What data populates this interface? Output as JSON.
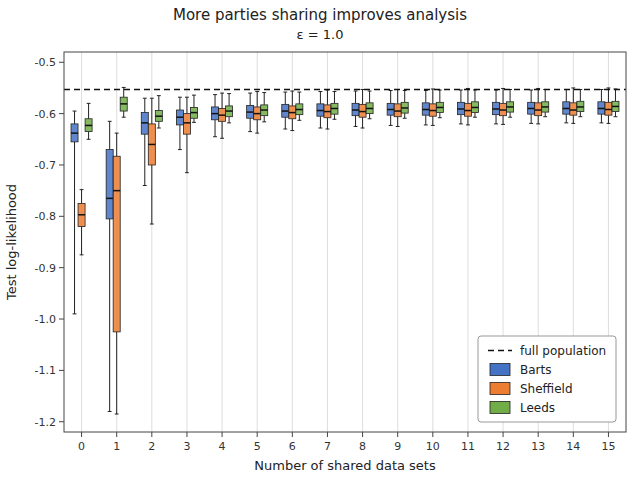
{
  "chart_data": {
    "type": "box",
    "title": "More parties sharing improves analysis",
    "subtitle": "ε = 1.0",
    "x_label": "Number of shared data sets",
    "y_label": "Test log-likelihood",
    "categories": [
      "0",
      "1",
      "2",
      "3",
      "4",
      "5",
      "6",
      "7",
      "8",
      "9",
      "10",
      "11",
      "12",
      "13",
      "14",
      "15"
    ],
    "ylim": [
      -1.22,
      -0.48
    ],
    "yticks": [
      -1.2,
      -1.1,
      {
        "value": -1,
        "label": "-1.0"
      },
      -0.9,
      -0.8,
      -0.7,
      -0.6,
      -0.5
    ],
    "grid": "x",
    "legend": "lower right",
    "reference_line": {
      "name": "full population",
      "value": -0.553,
      "line_style": "dashed"
    },
    "series": [
      {
        "name": "Barts",
        "color": "#4472C4",
        "whislo": [
          -0.99,
          -1.18,
          -0.74,
          -0.67,
          -0.645,
          -0.635,
          -0.63,
          -0.628,
          -0.625,
          -0.623,
          -0.622,
          -0.62,
          -0.62,
          -0.619,
          -0.618,
          -0.618
        ],
        "q1": [
          -0.655,
          -0.805,
          -0.64,
          -0.622,
          -0.612,
          -0.609,
          -0.607,
          -0.605,
          -0.604,
          -0.603,
          -0.603,
          -0.602,
          -0.602,
          -0.601,
          -0.601,
          -0.601
        ],
        "med": [
          -0.638,
          -0.765,
          -0.618,
          -0.607,
          -0.6,
          -0.597,
          -0.595,
          -0.594,
          -0.593,
          -0.592,
          -0.592,
          -0.591,
          -0.591,
          -0.59,
          -0.59,
          -0.59
        ],
        "q3": [
          -0.62,
          -0.67,
          -0.598,
          -0.593,
          -0.587,
          -0.584,
          -0.582,
          -0.581,
          -0.58,
          -0.58,
          -0.579,
          -0.578,
          -0.578,
          -0.578,
          -0.577,
          -0.577
        ],
        "whishi": [
          -0.595,
          -0.615,
          -0.57,
          -0.568,
          -0.563,
          -0.56,
          -0.558,
          -0.557,
          -0.556,
          -0.555,
          -0.555,
          -0.554,
          -0.554,
          -0.554,
          -0.553,
          -0.553
        ]
      },
      {
        "name": "Sheffield",
        "color": "#ED7D31",
        "whislo": [
          -0.875,
          -1.185,
          -0.815,
          -0.715,
          -0.648,
          -0.638,
          -0.633,
          -0.63,
          -0.628,
          -0.625,
          -0.623,
          -0.622,
          -0.621,
          -0.62,
          -0.619,
          -0.619
        ],
        "q1": [
          -0.82,
          -1.025,
          -0.7,
          -0.64,
          -0.615,
          -0.612,
          -0.61,
          -0.608,
          -0.607,
          -0.606,
          -0.605,
          -0.605,
          -0.604,
          -0.604,
          -0.603,
          -0.603
        ],
        "med": [
          -0.797,
          -0.75,
          -0.66,
          -0.618,
          -0.603,
          -0.6,
          -0.598,
          -0.596,
          -0.596,
          -0.595,
          -0.594,
          -0.594,
          -0.593,
          -0.593,
          -0.593,
          -0.592
        ],
        "q3": [
          -0.775,
          -0.683,
          -0.62,
          -0.6,
          -0.59,
          -0.587,
          -0.585,
          -0.583,
          -0.582,
          -0.581,
          -0.581,
          -0.58,
          -0.58,
          -0.579,
          -0.579,
          -0.578
        ],
        "whishi": [
          -0.748,
          -0.638,
          -0.57,
          -0.568,
          -0.56,
          -0.557,
          -0.556,
          -0.554,
          -0.553,
          -0.553,
          -0.552,
          -0.551,
          -0.551,
          -0.551,
          -0.55,
          -0.55
        ]
      },
      {
        "name": "Leeds",
        "color": "#70AD47",
        "whislo": [
          -0.65,
          -0.607,
          -0.628,
          -0.617,
          -0.618,
          -0.616,
          -0.613,
          -0.611,
          -0.61,
          -0.609,
          -0.608,
          -0.607,
          -0.607,
          -0.606,
          -0.606,
          -0.606
        ],
        "q1": [
          -0.635,
          -0.595,
          -0.615,
          -0.609,
          -0.606,
          -0.604,
          -0.602,
          -0.601,
          -0.6,
          -0.599,
          -0.598,
          -0.598,
          -0.597,
          -0.597,
          -0.596,
          -0.596
        ],
        "med": [
          -0.623,
          -0.581,
          -0.605,
          -0.598,
          -0.595,
          -0.593,
          -0.592,
          -0.59,
          -0.59,
          -0.589,
          -0.588,
          -0.588,
          -0.587,
          -0.587,
          -0.587,
          -0.586
        ],
        "q3": [
          -0.61,
          -0.568,
          -0.594,
          -0.588,
          -0.585,
          -0.583,
          -0.581,
          -0.58,
          -0.579,
          -0.578,
          -0.578,
          -0.577,
          -0.577,
          -0.577,
          -0.576,
          -0.576
        ],
        "whishi": [
          -0.58,
          -0.549,
          -0.565,
          -0.564,
          -0.561,
          -0.559,
          -0.558,
          -0.557,
          -0.556,
          -0.555,
          -0.554,
          -0.554,
          -0.553,
          -0.553,
          -0.553,
          -0.552
        ]
      }
    ]
  }
}
